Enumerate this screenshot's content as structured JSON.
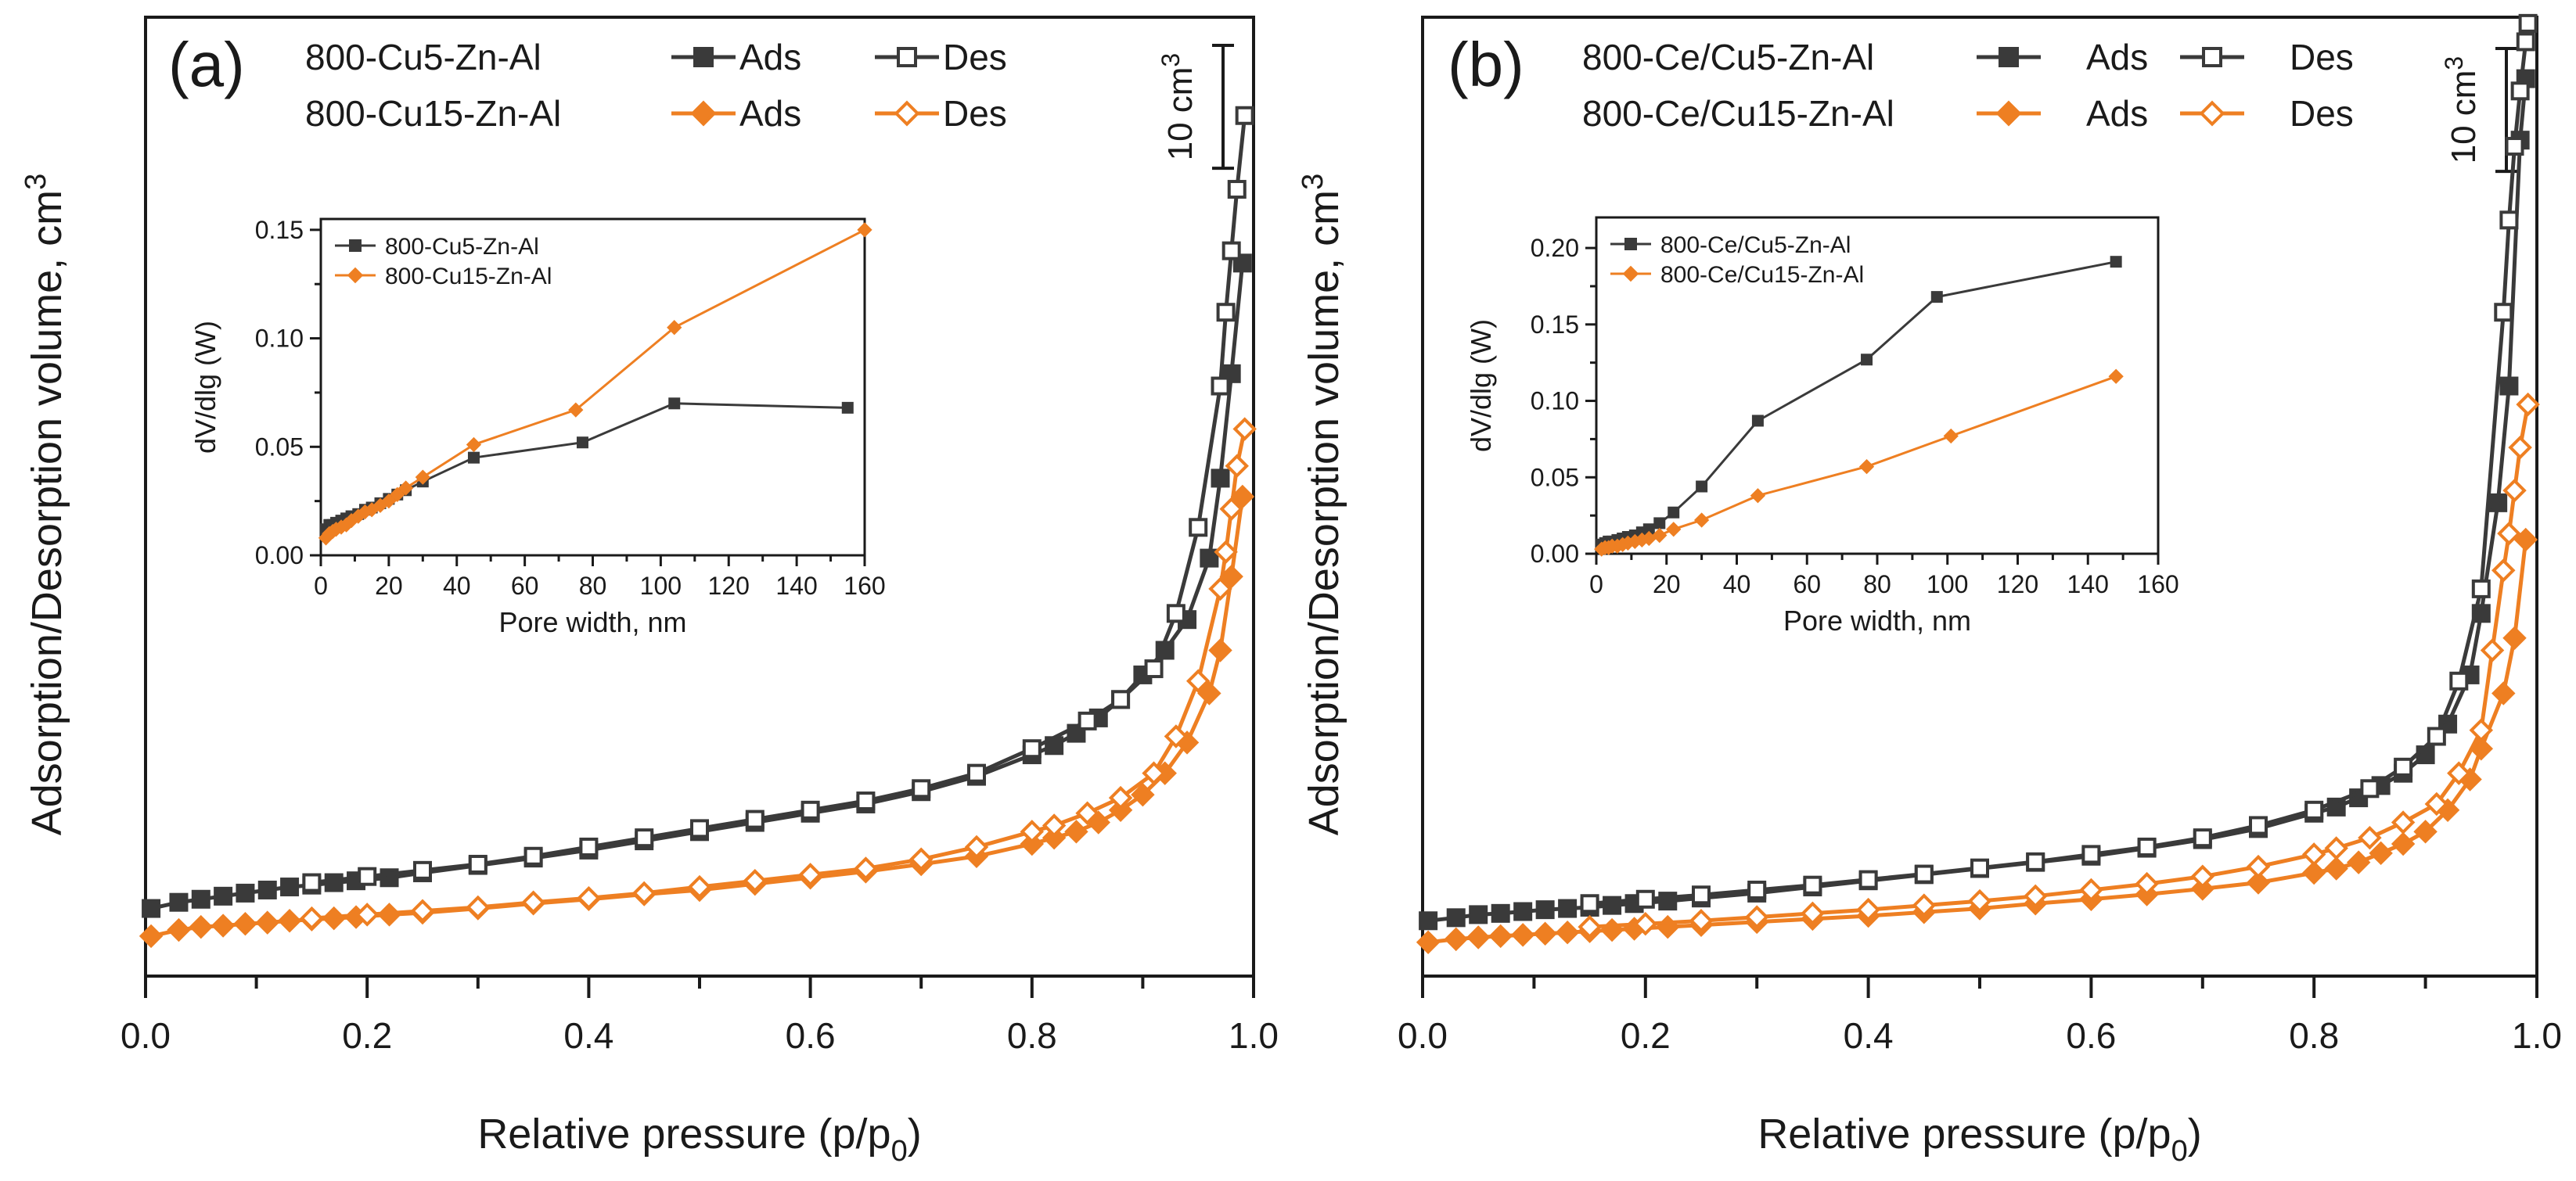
{
  "colors": {
    "series1": "#3a3a3a",
    "series2": "#ee7f22",
    "axis": "#1a1a1a"
  },
  "chart_data": [
    {
      "type": "line",
      "panel_label": "(a)",
      "xlabel_main": "Relative pressure (p/p",
      "xlabel_sub": "0",
      "xlabel_end": ")",
      "ylabel_main": "Adsorption/Desorption volume, cm",
      "ylabel_sup": "3",
      "xlim": [
        0,
        1
      ],
      "ylim": [
        -0.3,
        15.3
      ],
      "xticks": [
        "0.0",
        "0.2",
        "0.4",
        "0.6",
        "0.8",
        "1.0"
      ],
      "scalebar": {
        "text": "10 cm",
        "sup": "3",
        "value": 2
      },
      "legend": {
        "rows": [
          {
            "sample": "800-Cu5-Zn-Al",
            "ads": "Ads",
            "des": "Des"
          },
          {
            "sample": "800-Cu15-Zn-Al",
            "ads": "Ads",
            "des": "Des"
          }
        ]
      },
      "series": [
        {
          "name": "800-Cu5-Zn-Al Ads",
          "x": [
            0.005,
            0.03,
            0.05,
            0.07,
            0.09,
            0.11,
            0.13,
            0.15,
            0.17,
            0.19,
            0.22,
            0.25,
            0.3,
            0.35,
            0.4,
            0.45,
            0.5,
            0.55,
            0.6,
            0.65,
            0.7,
            0.75,
            0.8,
            0.82,
            0.84,
            0.86,
            0.88,
            0.9,
            0.92,
            0.94,
            0.96,
            0.97,
            0.98,
            0.99
          ],
          "y": [
            0.8,
            0.9,
            0.95,
            1.0,
            1.05,
            1.1,
            1.15,
            1.18,
            1.22,
            1.25,
            1.3,
            1.38,
            1.5,
            1.62,
            1.75,
            1.9,
            2.05,
            2.2,
            2.35,
            2.5,
            2.7,
            2.95,
            3.3,
            3.45,
            3.65,
            3.9,
            4.2,
            4.6,
            5.0,
            5.5,
            6.5,
            7.8,
            9.5,
            11.3
          ]
        },
        {
          "name": "800-Cu5-Zn-Al Des",
          "x": [
            0.992,
            0.985,
            0.98,
            0.975,
            0.97,
            0.95,
            0.93,
            0.91,
            0.88,
            0.85,
            0.8,
            0.75,
            0.7,
            0.65,
            0.6,
            0.55,
            0.5,
            0.45,
            0.4,
            0.35,
            0.3,
            0.25,
            0.2,
            0.15
          ],
          "y": [
            13.7,
            12.5,
            11.5,
            10.5,
            9.3,
            7.0,
            5.6,
            4.7,
            4.2,
            3.85,
            3.4,
            3.0,
            2.75,
            2.55,
            2.4,
            2.25,
            2.1,
            1.95,
            1.8,
            1.65,
            1.52,
            1.42,
            1.32,
            1.22
          ]
        },
        {
          "name": "800-Cu15-Zn-Al Ads",
          "x": [
            0.005,
            0.03,
            0.05,
            0.07,
            0.09,
            0.11,
            0.13,
            0.15,
            0.17,
            0.19,
            0.22,
            0.25,
            0.3,
            0.35,
            0.4,
            0.45,
            0.5,
            0.55,
            0.6,
            0.65,
            0.7,
            0.75,
            0.8,
            0.82,
            0.84,
            0.86,
            0.88,
            0.9,
            0.92,
            0.94,
            0.96,
            0.97,
            0.98,
            0.99
          ],
          "y": [
            0.35,
            0.45,
            0.5,
            0.52,
            0.55,
            0.57,
            0.6,
            0.62,
            0.64,
            0.66,
            0.7,
            0.73,
            0.8,
            0.88,
            0.95,
            1.03,
            1.1,
            1.2,
            1.3,
            1.4,
            1.52,
            1.65,
            1.85,
            1.95,
            2.05,
            2.2,
            2.4,
            2.65,
            3.0,
            3.5,
            4.3,
            5.0,
            6.2,
            7.5
          ]
        },
        {
          "name": "800-Cu15-Zn-Al Des",
          "x": [
            0.992,
            0.985,
            0.98,
            0.975,
            0.97,
            0.95,
            0.93,
            0.91,
            0.88,
            0.85,
            0.82,
            0.8,
            0.75,
            0.7,
            0.65,
            0.6,
            0.55,
            0.5,
            0.45,
            0.4,
            0.35,
            0.3,
            0.25,
            0.2,
            0.15
          ],
          "y": [
            8.6,
            8.0,
            7.3,
            6.6,
            6.0,
            4.5,
            3.6,
            3.0,
            2.6,
            2.35,
            2.15,
            2.05,
            1.8,
            1.6,
            1.45,
            1.35,
            1.25,
            1.15,
            1.05,
            0.97,
            0.9,
            0.82,
            0.76,
            0.7,
            0.64
          ]
        }
      ],
      "inset": {
        "type": "line",
        "xlabel": "Pore width, nm",
        "ylabel": "dV/dlg (W)",
        "xlim": [
          0,
          160
        ],
        "ylim": [
          0,
          0.155
        ],
        "xticks": [
          "0",
          "20",
          "40",
          "60",
          "80",
          "100",
          "120",
          "140",
          "160"
        ],
        "xtick_values": [
          0,
          20,
          40,
          60,
          80,
          100,
          120,
          140,
          160
        ],
        "yticks": [
          "0.00",
          "0.05",
          "0.10",
          "0.15"
        ],
        "ytick_values": [
          0,
          0.05,
          0.1,
          0.15
        ],
        "series": [
          {
            "name": "800-Cu5-Zn-Al",
            "x": [
              1.5,
              2.5,
              3.5,
              4.5,
              6,
              7.5,
              9,
              11,
              13,
              15,
              17.5,
              20,
              22.5,
              25,
              30,
              45,
              77,
              104,
              155
            ],
            "y": [
              0.012,
              0.014,
              0.014,
              0.015,
              0.016,
              0.017,
              0.018,
              0.019,
              0.021,
              0.022,
              0.024,
              0.026,
              0.028,
              0.03,
              0.034,
              0.045,
              0.052,
              0.07,
              0.068
            ]
          },
          {
            "name": "800-Cu15-Zn-Al",
            "x": [
              1.5,
              2.5,
              3.5,
              4.5,
              6,
              7.5,
              9,
              11,
              13,
              15,
              17.5,
              20,
              22.5,
              25,
              30,
              45,
              75,
              104,
              160
            ],
            "y": [
              0.008,
              0.01,
              0.011,
              0.012,
              0.013,
              0.014,
              0.016,
              0.018,
              0.02,
              0.021,
              0.023,
              0.025,
              0.028,
              0.031,
              0.036,
              0.051,
              0.067,
              0.105,
              0.15
            ]
          }
        ]
      }
    },
    {
      "type": "line",
      "panel_label": "(b)",
      "xlabel_main": "Relative pressure (p/p",
      "xlabel_sub": "0",
      "xlabel_end": ")",
      "ylabel_main": "Adsorption/Desorption volume, cm",
      "ylabel_sup": "3",
      "xlim": [
        0,
        1
      ],
      "ylim": [
        -0.3,
        15.3
      ],
      "xticks": [
        "0.0",
        "0.2",
        "0.4",
        "0.6",
        "0.8",
        "1.0"
      ],
      "scalebar": {
        "text": "10 cm",
        "sup": "3",
        "value": 2
      },
      "legend": {
        "rows": [
          {
            "sample": "800-Ce/Cu5-Zn-Al",
            "ads": "Ads",
            "des": "Des"
          },
          {
            "sample": "800-Ce/Cu15-Zn-Al",
            "ads": "Ads",
            "des": "Des"
          }
        ]
      },
      "series": [
        {
          "name": "800-Ce/Cu5-Zn-Al Ads",
          "x": [
            0.005,
            0.03,
            0.05,
            0.07,
            0.09,
            0.11,
            0.13,
            0.15,
            0.17,
            0.19,
            0.22,
            0.25,
            0.3,
            0.35,
            0.4,
            0.45,
            0.5,
            0.55,
            0.6,
            0.65,
            0.7,
            0.75,
            0.8,
            0.82,
            0.84,
            0.86,
            0.88,
            0.9,
            0.92,
            0.94,
            0.95,
            0.965,
            0.975,
            0.985,
            0.99
          ],
          "y": [
            0.6,
            0.65,
            0.7,
            0.72,
            0.75,
            0.78,
            0.8,
            0.82,
            0.85,
            0.88,
            0.92,
            0.97,
            1.05,
            1.15,
            1.25,
            1.35,
            1.45,
            1.55,
            1.65,
            1.78,
            1.92,
            2.1,
            2.35,
            2.45,
            2.6,
            2.8,
            3.0,
            3.3,
            3.8,
            4.6,
            5.6,
            7.4,
            9.3,
            13.3,
            14.3
          ]
        },
        {
          "name": "800-Ce/Cu5-Zn-Al Des",
          "x": [
            0.992,
            0.99,
            0.985,
            0.98,
            0.975,
            0.97,
            0.95,
            0.93,
            0.91,
            0.88,
            0.85,
            0.8,
            0.75,
            0.7,
            0.65,
            0.6,
            0.55,
            0.5,
            0.45,
            0.4,
            0.35,
            0.3,
            0.25,
            0.2,
            0.15
          ],
          "y": [
            15.2,
            14.9,
            14.1,
            13.2,
            12.0,
            10.5,
            6.0,
            4.5,
            3.6,
            3.1,
            2.75,
            2.4,
            2.15,
            1.95,
            1.8,
            1.68,
            1.56,
            1.46,
            1.36,
            1.27,
            1.18,
            1.1,
            1.02,
            0.95,
            0.88
          ]
        },
        {
          "name": "800-Ce/Cu15-Zn-Al Ads",
          "x": [
            0.005,
            0.03,
            0.05,
            0.07,
            0.09,
            0.11,
            0.13,
            0.15,
            0.17,
            0.19,
            0.22,
            0.25,
            0.3,
            0.35,
            0.4,
            0.45,
            0.5,
            0.55,
            0.6,
            0.65,
            0.7,
            0.75,
            0.8,
            0.82,
            0.84,
            0.86,
            0.88,
            0.9,
            0.92,
            0.94,
            0.95,
            0.97,
            0.98,
            0.99
          ],
          "y": [
            0.25,
            0.3,
            0.33,
            0.35,
            0.37,
            0.39,
            0.41,
            0.43,
            0.45,
            0.47,
            0.5,
            0.53,
            0.58,
            0.63,
            0.68,
            0.74,
            0.8,
            0.88,
            0.95,
            1.03,
            1.12,
            1.22,
            1.38,
            1.45,
            1.55,
            1.7,
            1.85,
            2.05,
            2.4,
            2.9,
            3.4,
            4.3,
            5.2,
            6.8
          ]
        },
        {
          "name": "800-Ce/Cu15-Zn-Al Des",
          "x": [
            0.992,
            0.985,
            0.98,
            0.975,
            0.97,
            0.96,
            0.95,
            0.93,
            0.91,
            0.88,
            0.85,
            0.82,
            0.8,
            0.75,
            0.7,
            0.65,
            0.6,
            0.55,
            0.5,
            0.45,
            0.4,
            0.35,
            0.3,
            0.25,
            0.2,
            0.15
          ],
          "y": [
            9.0,
            8.3,
            7.6,
            6.9,
            6.3,
            5.0,
            3.7,
            3.0,
            2.5,
            2.2,
            1.95,
            1.78,
            1.68,
            1.48,
            1.32,
            1.2,
            1.1,
            1.0,
            0.92,
            0.85,
            0.78,
            0.72,
            0.66,
            0.6,
            0.55,
            0.5
          ]
        }
      ],
      "inset": {
        "type": "line",
        "xlabel": "Pore width, nm",
        "ylabel": "dV/dlg (W)",
        "xlim": [
          0,
          160
        ],
        "ylim": [
          0,
          0.22
        ],
        "xticks": [
          "0",
          "20",
          "40",
          "60",
          "80",
          "100",
          "120",
          "140",
          "160"
        ],
        "xtick_values": [
          0,
          20,
          40,
          60,
          80,
          100,
          120,
          140,
          160
        ],
        "yticks": [
          "0.00",
          "0.05",
          "0.10",
          "0.15",
          "0.20"
        ],
        "ytick_values": [
          0,
          0.05,
          0.1,
          0.15,
          0.2
        ],
        "series": [
          {
            "name": "800-Ce/Cu5-Zn-Al",
            "x": [
              1.5,
              2.5,
              3.5,
              4.5,
              6,
              7.5,
              9,
              11,
              13,
              15,
              18,
              22,
              30,
              46,
              77,
              97,
              148
            ],
            "y": [
              0.006,
              0.007,
              0.008,
              0.008,
              0.009,
              0.01,
              0.011,
              0.012,
              0.014,
              0.016,
              0.02,
              0.027,
              0.044,
              0.087,
              0.127,
              0.168,
              0.191
            ]
          },
          {
            "name": "800-Ce/Cu15-Zn-Al",
            "x": [
              1.5,
              2.5,
              3.5,
              4.5,
              6,
              7.5,
              9,
              11,
              13,
              15,
              18,
              22,
              30,
              46,
              77,
              101,
              148
            ],
            "y": [
              0.003,
              0.004,
              0.004,
              0.005,
              0.005,
              0.006,
              0.007,
              0.008,
              0.009,
              0.01,
              0.012,
              0.016,
              0.022,
              0.038,
              0.057,
              0.077,
              0.116
            ]
          }
        ]
      }
    }
  ]
}
